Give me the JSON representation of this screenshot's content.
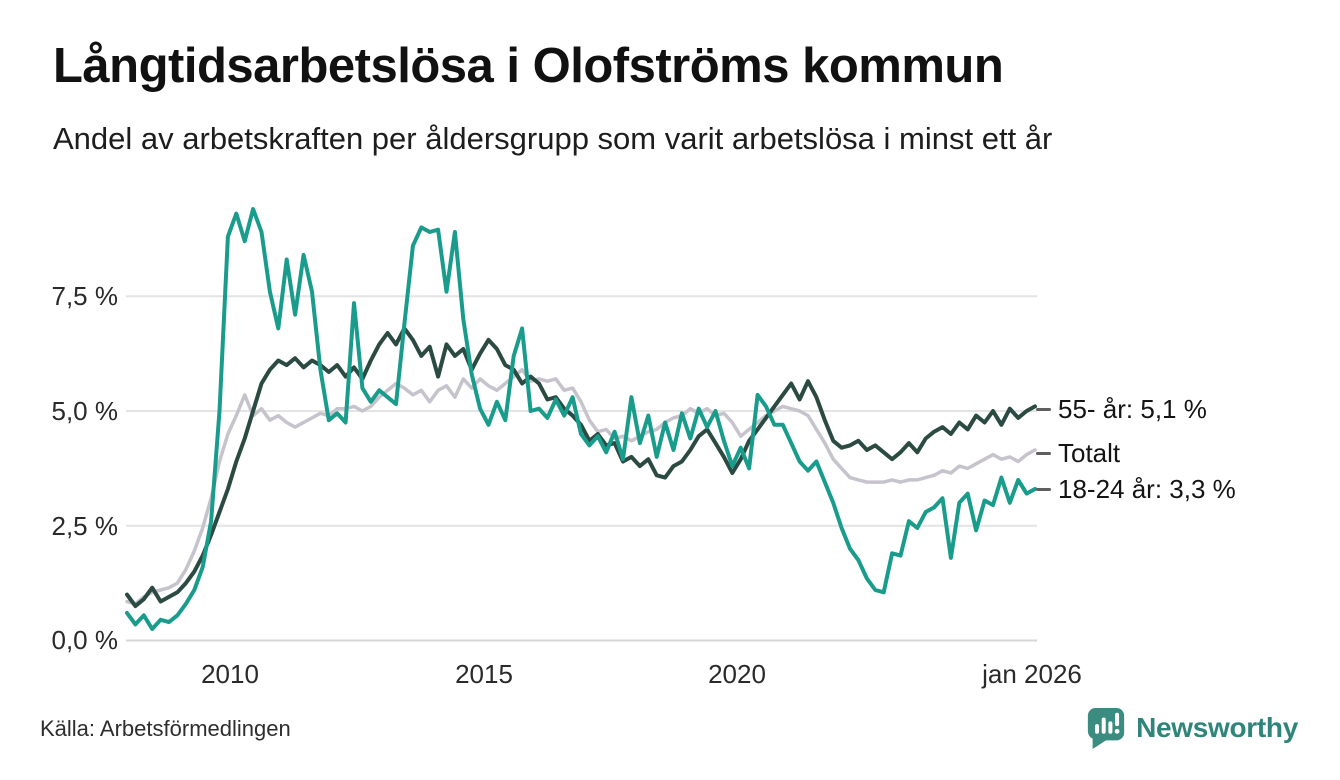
{
  "header": {
    "title": "Långtidsarbetslösa i Olofströms kommun",
    "subtitle": "Andel av arbetskraften per åldersgrupp som varit arbetslösa i minst ett år"
  },
  "footer": {
    "source": "Källa: Arbetsförmedlingen",
    "brand_name": "Newsworthy"
  },
  "colors": {
    "series_55": "#2b4a42",
    "series_total": "#c6c3cd",
    "series_18_24": "#1a9c8c",
    "brand_teal": "#3a8c80",
    "brand_text": "#2f857a",
    "grid": "#e4e4e4",
    "zero_line": "#d6d6d6"
  },
  "chart_data": {
    "type": "line",
    "title": "Långtidsarbetslösa i Olofströms kommun",
    "subtitle": "Andel av arbetskraften per åldersgrupp som varit arbetslösa i minst ett år",
    "unit": "% av arbetskraften",
    "grid": "horizontal",
    "legend_position": "right-of-line-ends",
    "x_start_year": 2008.0,
    "x_step_years": 0.1666667,
    "x_tick_labels": [
      "2010",
      "2015",
      "2020",
      "jan 2026"
    ],
    "x_tick_years": [
      2010,
      2015,
      2020,
      2026
    ],
    "y_tick_labels": [
      "7,5 %",
      "5,0 %",
      "2,5 %",
      "0,0 %"
    ],
    "y_ticks": [
      7.5,
      5.0,
      2.5,
      0.0
    ],
    "ylim": [
      0,
      9.8
    ],
    "draw_order": [
      1,
      0,
      2
    ],
    "series": [
      {
        "name": "55- år",
        "label": "55- år: 5,1 %",
        "last_value": 5.1,
        "color": "#2b4a42",
        "width": 4,
        "values": [
          1.0,
          0.75,
          0.9,
          1.15,
          0.85,
          0.95,
          1.05,
          1.25,
          1.5,
          1.85,
          2.3,
          2.8,
          3.3,
          3.9,
          4.4,
          5.0,
          5.6,
          5.9,
          6.1,
          6.0,
          6.15,
          5.95,
          6.1,
          6.0,
          5.85,
          6.0,
          5.75,
          5.95,
          5.7,
          6.1,
          6.45,
          6.7,
          6.45,
          6.8,
          6.55,
          6.2,
          6.4,
          5.75,
          6.45,
          6.2,
          6.35,
          5.9,
          6.25,
          6.55,
          6.35,
          6.0,
          5.9,
          5.6,
          5.75,
          5.6,
          5.25,
          5.3,
          5.05,
          4.9,
          4.7,
          4.35,
          4.5,
          4.25,
          4.3,
          3.9,
          4.0,
          3.8,
          3.95,
          3.6,
          3.55,
          3.8,
          3.9,
          4.15,
          4.45,
          4.6,
          4.3,
          4.0,
          3.65,
          3.95,
          4.35,
          4.6,
          4.85,
          5.1,
          5.35,
          5.6,
          5.25,
          5.65,
          5.3,
          4.8,
          4.35,
          4.2,
          4.25,
          4.35,
          4.15,
          4.25,
          4.1,
          3.95,
          4.1,
          4.3,
          4.1,
          4.4,
          4.55,
          4.65,
          4.5,
          4.75,
          4.6,
          4.9,
          4.75,
          5.0,
          4.7,
          5.05,
          4.85,
          5.0,
          5.1
        ]
      },
      {
        "name": "Totalt",
        "label": "Totalt",
        "last_value": 4.15,
        "color": "#c6c3cd",
        "width": 3.5,
        "values": [
          0.85,
          0.8,
          0.95,
          1.05,
          1.1,
          1.15,
          1.25,
          1.55,
          1.95,
          2.45,
          3.1,
          3.9,
          4.5,
          4.9,
          5.35,
          4.9,
          5.05,
          4.8,
          4.9,
          4.75,
          4.65,
          4.75,
          4.85,
          4.95,
          4.9,
          5.05,
          5.05,
          5.1,
          5.0,
          5.1,
          5.3,
          5.45,
          5.6,
          5.5,
          5.35,
          5.45,
          5.2,
          5.45,
          5.55,
          5.3,
          5.7,
          5.5,
          5.7,
          5.55,
          5.45,
          5.6,
          5.75,
          5.9,
          5.65,
          5.7,
          5.65,
          5.7,
          5.45,
          5.5,
          5.2,
          4.8,
          4.55,
          4.6,
          4.4,
          4.45,
          4.35,
          4.45,
          4.55,
          4.6,
          4.75,
          4.85,
          4.9,
          5.05,
          4.95,
          5.05,
          4.9,
          4.95,
          4.75,
          4.45,
          4.6,
          4.75,
          4.9,
          5.0,
          5.1,
          5.05,
          5.0,
          4.9,
          4.6,
          4.3,
          3.95,
          3.75,
          3.55,
          3.5,
          3.45,
          3.45,
          3.45,
          3.5,
          3.45,
          3.5,
          3.5,
          3.55,
          3.6,
          3.7,
          3.65,
          3.8,
          3.75,
          3.85,
          3.95,
          4.05,
          3.95,
          4.0,
          3.9,
          4.05,
          4.15
        ]
      },
      {
        "name": "18-24 år",
        "label": "18-24 år: 3,3 %",
        "last_value": 3.3,
        "color": "#1a9c8c",
        "width": 4,
        "values": [
          0.6,
          0.35,
          0.55,
          0.25,
          0.45,
          0.4,
          0.55,
          0.8,
          1.1,
          1.6,
          2.6,
          5.0,
          8.8,
          9.3,
          8.7,
          9.4,
          8.9,
          7.6,
          6.8,
          8.3,
          7.1,
          8.4,
          7.6,
          5.9,
          4.8,
          4.95,
          4.75,
          7.35,
          5.5,
          5.2,
          5.45,
          5.3,
          5.15,
          6.9,
          8.6,
          9.0,
          8.9,
          8.95,
          7.6,
          8.9,
          7.0,
          5.8,
          5.05,
          4.7,
          5.2,
          4.8,
          6.2,
          6.8,
          5.0,
          5.05,
          4.85,
          5.25,
          4.9,
          5.3,
          4.5,
          4.25,
          4.45,
          4.1,
          4.55,
          3.95,
          5.3,
          4.3,
          4.9,
          4.0,
          4.75,
          4.15,
          4.95,
          4.4,
          5.05,
          4.65,
          5.0,
          4.35,
          3.8,
          4.2,
          3.75,
          5.35,
          5.1,
          4.7,
          4.7,
          4.3,
          3.9,
          3.7,
          3.9,
          3.45,
          3.0,
          2.45,
          2.0,
          1.75,
          1.35,
          1.1,
          1.05,
          1.9,
          1.85,
          2.6,
          2.45,
          2.8,
          2.9,
          3.1,
          1.8,
          3.0,
          3.2,
          2.4,
          3.05,
          2.95,
          3.55,
          3.0,
          3.5,
          3.2,
          3.3
        ]
      }
    ]
  }
}
